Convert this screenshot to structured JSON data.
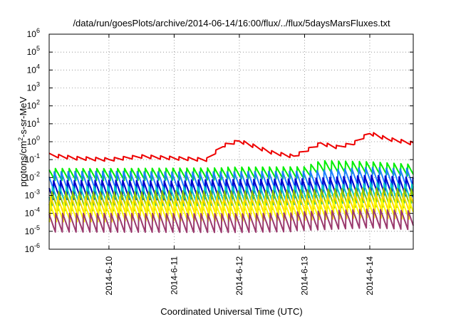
{
  "chart_data": {
    "type": "line",
    "title": "/data/run/goesPlots/archive/2014-06-14/16:00/flux/../flux/5daysMarsFluxes.txt",
    "xlabel": "Coordinated Universal Time (UTC)",
    "ylabel": "protons/cm²-s-sr-MeV",
    "yscale": "log",
    "ylim": [
      1e-06,
      1000000.0
    ],
    "xlim": [
      "2014-06-09T02:00",
      "2014-06-14T16:00"
    ],
    "grid": true,
    "legend": "none",
    "x_ticks": [
      {
        "x": "2014-06-10T00:00",
        "label": "2014-6-10"
      },
      {
        "x": "2014-06-11T00:00",
        "label": "2014-6-11"
      },
      {
        "x": "2014-06-12T00:00",
        "label": "2014-6-12"
      },
      {
        "x": "2014-06-13T00:00",
        "label": "2014-6-13"
      },
      {
        "x": "2014-06-14T00:00",
        "label": "2014-6-14"
      }
    ],
    "y_ticks": [
      {
        "value": 1e-06,
        "base": "10",
        "exp": "-6"
      },
      {
        "value": 1e-05,
        "base": "10",
        "exp": "-5"
      },
      {
        "value": 0.0001,
        "base": "10",
        "exp": "-4"
      },
      {
        "value": 0.001,
        "base": "10",
        "exp": "-3"
      },
      {
        "value": 0.01,
        "base": "10",
        "exp": "-2"
      },
      {
        "value": 0.1,
        "base": "10",
        "exp": "-1"
      },
      {
        "value": 1,
        "base": "10",
        "exp": "0"
      },
      {
        "value": 10.0,
        "base": "10",
        "exp": "1"
      },
      {
        "value": 100.0,
        "base": "10",
        "exp": "2"
      },
      {
        "value": 1000.0,
        "base": "10",
        "exp": "3"
      },
      {
        "value": 10000.0,
        "base": "10",
        "exp": "4"
      },
      {
        "value": 100000.0,
        "base": "10",
        "exp": "5"
      },
      {
        "value": 1000000.0,
        "base": "10",
        "exp": "6"
      }
    ],
    "series": [
      {
        "color": "#ee0000",
        "x": [
          "2014-06-09T02:00",
          "2014-06-09T12:00",
          "2014-06-10T00:00",
          "2014-06-10T12:00",
          "2014-06-11T00:00",
          "2014-06-11T12:00",
          "2014-06-11T18:00",
          "2014-06-12T00:00",
          "2014-06-12T12:00",
          "2014-06-12T20:00",
          "2014-06-13T06:00",
          "2014-06-13T12:00",
          "2014-06-13T18:00",
          "2014-06-14T00:00",
          "2014-06-14T06:00",
          "2014-06-14T16:00"
        ],
        "values": [
          0.18,
          0.12,
          0.1,
          0.15,
          0.12,
          0.1,
          0.6,
          1.1,
          0.25,
          0.15,
          0.8,
          0.5,
          0.8,
          3.0,
          1.5,
          0.8
        ]
      },
      {
        "color": "#00ee00",
        "x": [
          "2014-06-09T02:00",
          "2014-06-10T00:00",
          "2014-06-11T00:00",
          "2014-06-12T00:00",
          "2014-06-13T00:00",
          "2014-06-13T06:00",
          "2014-06-14T00:00",
          "2014-06-14T16:00"
        ],
        "values": [
          0.015,
          0.015,
          0.016,
          0.017,
          0.018,
          0.04,
          0.035,
          0.025
        ]
      },
      {
        "color": "#1e7fff",
        "x": [
          "2014-06-09T02:00",
          "2014-06-10T00:00",
          "2014-06-11T00:00",
          "2014-06-12T00:00",
          "2014-06-13T00:00",
          "2014-06-14T00:00",
          "2014-06-14T16:00"
        ],
        "values": [
          0.006,
          0.0065,
          0.006,
          0.0065,
          0.007,
          0.012,
          0.009
        ]
      },
      {
        "color": "#0000cc",
        "x": [
          "2014-06-09T02:00",
          "2014-06-10T00:00",
          "2014-06-11T00:00",
          "2014-06-12T00:00",
          "2014-06-13T00:00",
          "2014-06-14T00:00",
          "2014-06-14T16:00"
        ],
        "values": [
          0.002,
          0.0022,
          0.002,
          0.0022,
          0.0025,
          0.004,
          0.003
        ]
      },
      {
        "color": "#00c8c8",
        "x": [
          "2014-06-09T02:00",
          "2014-06-10T00:00",
          "2014-06-11T00:00",
          "2014-06-12T00:00",
          "2014-06-13T00:00",
          "2014-06-14T00:00",
          "2014-06-14T16:00"
        ],
        "values": [
          0.0009,
          0.001,
          0.0009,
          0.001,
          0.0011,
          0.0015,
          0.0012
        ]
      },
      {
        "color": "#8bc400",
        "x": [
          "2014-06-09T02:00",
          "2014-06-10T00:00",
          "2014-06-11T00:00",
          "2014-06-12T00:00",
          "2014-06-13T00:00",
          "2014-06-14T00:00",
          "2014-06-14T16:00"
        ],
        "values": [
          0.0005,
          0.0005,
          0.0005,
          0.0005,
          0.0006,
          0.0008,
          0.0007
        ]
      },
      {
        "color": "#ffd700",
        "x": [
          "2014-06-09T02:00",
          "2014-06-10T00:00",
          "2014-06-11T00:00",
          "2014-06-12T00:00",
          "2014-06-13T00:00",
          "2014-06-14T00:00",
          "2014-06-14T16:00"
        ],
        "values": [
          0.00025,
          0.00025,
          0.00025,
          0.00025,
          0.0003,
          0.0004,
          0.00035
        ]
      },
      {
        "color": "#ffff00",
        "x": [
          "2014-06-09T02:00",
          "2014-06-10T00:00",
          "2014-06-11T00:00",
          "2014-06-12T00:00",
          "2014-06-13T00:00",
          "2014-06-14T00:00",
          "2014-06-14T16:00"
        ],
        "values": [
          0.00012,
          0.00012,
          0.00012,
          0.00012,
          0.00014,
          0.0002,
          0.00016
        ]
      },
      {
        "color": "#9b3a6e",
        "x": [
          "2014-06-09T02:00",
          "2014-06-10T00:00",
          "2014-06-11T00:00",
          "2014-06-12T00:00",
          "2014-06-13T00:00",
          "2014-06-14T00:00",
          "2014-06-14T16:00"
        ],
        "values": [
          3e-05,
          3e-05,
          3e-05,
          3e-05,
          3.5e-05,
          5e-05,
          4e-05
        ]
      }
    ]
  }
}
